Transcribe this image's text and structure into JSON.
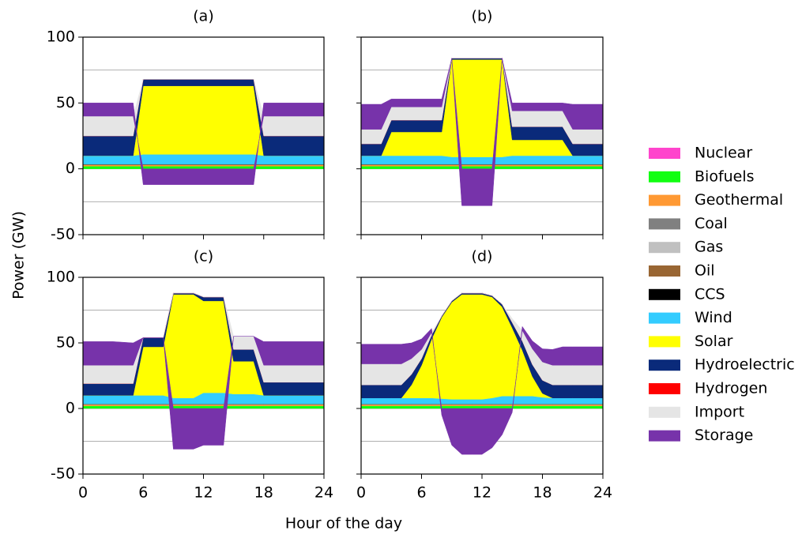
{
  "ylabel": "Power (GW)",
  "xlabel": "Hour of the day",
  "legend": [
    {
      "name": "Nuclear",
      "color": "#ff44cc"
    },
    {
      "name": "Biofuels",
      "color": "#11ff11"
    },
    {
      "name": "Geothermal",
      "color": "#ff9933"
    },
    {
      "name": "Coal",
      "color": "#808080"
    },
    {
      "name": "Gas",
      "color": "#c0c0c0"
    },
    {
      "name": "Oil",
      "color": "#996633"
    },
    {
      "name": "CCS",
      "color": "#000000"
    },
    {
      "name": "Wind",
      "color": "#33ccff"
    },
    {
      "name": "Solar",
      "color": "#ffff00"
    },
    {
      "name": "Hydroelectric",
      "color": "#0a2a7a"
    },
    {
      "name": "Hydrogen",
      "color": "#ff0000"
    },
    {
      "name": "Import",
      "color": "#e5e5e5"
    },
    {
      "name": "Storage",
      "color": "#7733aa"
    }
  ],
  "chart_data": [
    {
      "type": "area",
      "title": "(a)",
      "xlim": [
        0,
        24
      ],
      "xticks": [
        0,
        6,
        12,
        18,
        24
      ],
      "ylim": [
        -50,
        100
      ],
      "yticks": [
        -50,
        0,
        50,
        100
      ],
      "ygrid": [
        -25,
        0,
        25,
        75
      ],
      "show_xticklabels": false,
      "show_yticklabels": true,
      "x": [
        0,
        5,
        6,
        17,
        18,
        24
      ],
      "series": [
        {
          "values": [
            0,
            0,
            0,
            0,
            0,
            0
          ]
        },
        {
          "values": [
            2,
            2,
            2,
            2,
            2,
            2
          ]
        },
        {
          "values": [
            1,
            1,
            1,
            1,
            1,
            1
          ]
        },
        {
          "values": [
            0,
            0,
            0,
            0,
            0,
            0
          ]
        },
        {
          "values": [
            0,
            0,
            0,
            0,
            0,
            0
          ]
        },
        {
          "values": [
            0.5,
            0.5,
            0.5,
            0.5,
            0.5,
            0.5
          ]
        },
        {
          "values": [
            0,
            0,
            0,
            0,
            0,
            0
          ]
        },
        {
          "values": [
            6.5,
            6.5,
            7.5,
            7.5,
            6.5,
            6.5
          ]
        },
        {
          "values": [
            0,
            0,
            52,
            52,
            0,
            0
          ]
        },
        {
          "values": [
            15,
            15,
            5,
            5,
            15,
            15
          ]
        },
        {
          "values": [
            0,
            0,
            0,
            0,
            0,
            0
          ]
        },
        {
          "values": [
            15,
            15,
            0,
            0,
            15,
            15
          ]
        },
        {
          "values": [
            10,
            10,
            -12,
            -12,
            10,
            10
          ]
        }
      ]
    },
    {
      "type": "area",
      "title": "(b)",
      "xlim": [
        0,
        24
      ],
      "xticks": [
        0,
        6,
        12,
        18,
        24
      ],
      "ylim": [
        -50,
        100
      ],
      "yticks": [
        -50,
        0,
        50,
        100
      ],
      "ygrid": [
        -25,
        0,
        25,
        75
      ],
      "show_xticklabels": false,
      "show_yticklabels": false,
      "x": [
        0,
        2,
        3,
        8,
        9,
        10,
        13,
        14,
        15,
        20,
        21,
        24
      ],
      "series": [
        {
          "values": [
            0,
            0,
            0,
            0,
            0,
            0,
            0,
            0,
            0,
            0,
            0,
            0
          ]
        },
        {
          "values": [
            2,
            2,
            2,
            2,
            2,
            2,
            2,
            2,
            2,
            2,
            2,
            2
          ]
        },
        {
          "values": [
            1,
            1,
            1,
            1,
            1,
            1,
            1,
            1,
            1,
            1,
            1,
            1
          ]
        },
        {
          "values": [
            0,
            0,
            0,
            0,
            0,
            0,
            0,
            0,
            0,
            0,
            0,
            0
          ]
        },
        {
          "values": [
            0,
            0,
            0,
            0,
            0,
            0,
            0,
            0,
            0,
            0,
            0,
            0
          ]
        },
        {
          "values": [
            0.5,
            0.5,
            0.5,
            0.5,
            0.5,
            0.5,
            0.5,
            0.5,
            0.5,
            0.5,
            0.5,
            0.5
          ]
        },
        {
          "values": [
            0,
            0,
            0,
            0,
            0,
            0,
            0,
            0,
            0,
            0,
            0,
            0
          ]
        },
        {
          "values": [
            6.5,
            6.5,
            6.5,
            6.5,
            5.5,
            5.5,
            5.5,
            5.5,
            6.5,
            6.5,
            6.5,
            6.5
          ]
        },
        {
          "values": [
            0,
            0,
            18,
            18,
            74,
            74,
            74,
            74,
            12,
            12,
            0,
            0
          ]
        },
        {
          "values": [
            9,
            9,
            9,
            9,
            1,
            1,
            1,
            1,
            10,
            10,
            9,
            9
          ]
        },
        {
          "values": [
            0,
            0,
            0,
            0,
            0,
            0,
            0,
            0,
            0,
            0,
            0,
            0
          ]
        },
        {
          "values": [
            11,
            11,
            10,
            10,
            0,
            0,
            0,
            0,
            12,
            12,
            11,
            11
          ]
        },
        {
          "values": [
            19,
            19,
            6,
            6,
            0,
            -28,
            -28,
            0,
            6,
            6,
            19,
            19
          ]
        }
      ]
    },
    {
      "type": "area",
      "title": "(c)",
      "xlim": [
        0,
        24
      ],
      "xticks": [
        0,
        6,
        12,
        18,
        24
      ],
      "ylim": [
        -50,
        100
      ],
      "yticks": [
        -50,
        0,
        50,
        100
      ],
      "ygrid": [
        -25,
        0,
        25,
        75
      ],
      "show_xticklabels": true,
      "show_yticklabels": true,
      "x": [
        0,
        3,
        5,
        6,
        8,
        9,
        11,
        12,
        14,
        15,
        17,
        18,
        24
      ],
      "series": [
        {
          "values": [
            0,
            0,
            0,
            0,
            0,
            0,
            0,
            0,
            0,
            0,
            0,
            0,
            0
          ]
        },
        {
          "values": [
            2,
            2,
            2,
            2,
            2,
            2,
            2,
            2,
            2,
            2,
            2,
            2,
            2
          ]
        },
        {
          "values": [
            1,
            1,
            1,
            1,
            1,
            1,
            1,
            1,
            1,
            1,
            1,
            1,
            1
          ]
        },
        {
          "values": [
            0,
            0,
            0,
            0,
            0,
            0,
            0,
            0,
            0,
            0,
            0,
            0,
            0
          ]
        },
        {
          "values": [
            0,
            0,
            0,
            0,
            0,
            0,
            0,
            0,
            0,
            0,
            0,
            0,
            0
          ]
        },
        {
          "values": [
            0.5,
            0.5,
            0.5,
            0.5,
            0.5,
            0.5,
            0.5,
            0.5,
            0.5,
            0.5,
            0.5,
            0.5,
            0.5
          ]
        },
        {
          "values": [
            0,
            0,
            0,
            0,
            0,
            0,
            0,
            0,
            0,
            0,
            0,
            0,
            0
          ]
        },
        {
          "values": [
            6.5,
            6.5,
            6.5,
            6.5,
            6.5,
            4.5,
            4.5,
            8.5,
            8.5,
            7.5,
            7.5,
            6.5,
            6.5
          ]
        },
        {
          "values": [
            0,
            0,
            0,
            37,
            37,
            79,
            79,
            70,
            70,
            25,
            25,
            0,
            0
          ]
        },
        {
          "values": [
            9,
            9,
            9,
            7,
            7,
            1,
            1,
            3,
            3,
            9,
            9,
            10,
            10
          ]
        },
        {
          "values": [
            0,
            0,
            0,
            0,
            0,
            0,
            0,
            0,
            0,
            0,
            0,
            0,
            0
          ]
        },
        {
          "values": [
            14,
            14,
            14,
            0,
            0,
            0,
            0,
            0,
            0,
            10,
            10,
            13,
            13
          ]
        },
        {
          "values": [
            18,
            18,
            17,
            0,
            0,
            -31,
            -31,
            -28,
            -28,
            0,
            0,
            18,
            18
          ]
        }
      ]
    },
    {
      "type": "area",
      "title": "(d)",
      "xlim": [
        0,
        24
      ],
      "xticks": [
        0,
        6,
        12,
        18,
        24
      ],
      "ylim": [
        -50,
        100
      ],
      "yticks": [
        -50,
        0,
        50,
        100
      ],
      "ygrid": [
        -25,
        0,
        25,
        75
      ],
      "show_xticklabels": true,
      "show_yticklabels": false,
      "x": [
        0,
        1,
        2,
        3,
        4,
        5,
        6,
        7,
        8,
        9,
        10,
        11,
        12,
        13,
        14,
        15,
        16,
        17,
        18,
        19,
        20,
        21,
        22,
        23,
        24
      ],
      "series": [
        {
          "values": [
            0,
            0,
            0,
            0,
            0,
            0,
            0,
            0,
            0,
            0,
            0,
            0,
            0,
            0,
            0,
            0,
            0,
            0,
            0,
            0,
            0,
            0,
            0,
            0,
            0
          ]
        },
        {
          "values": [
            2,
            2,
            2,
            2,
            2,
            2,
            2,
            2,
            2,
            2,
            2,
            2,
            2,
            2,
            2,
            2,
            2,
            2,
            2,
            2,
            2,
            2,
            2,
            2,
            2
          ]
        },
        {
          "values": [
            1,
            1,
            1,
            1,
            1,
            1,
            1,
            1,
            1,
            1,
            1,
            1,
            1,
            1,
            1,
            1,
            1,
            1,
            1,
            1,
            1,
            1,
            1,
            1,
            1
          ]
        },
        {
          "values": [
            0,
            0,
            0,
            0,
            0,
            0,
            0,
            0,
            0,
            0,
            0,
            0,
            0,
            0,
            0,
            0,
            0,
            0,
            0,
            0,
            0,
            0,
            0,
            0,
            0
          ]
        },
        {
          "values": [
            0,
            0,
            0,
            0,
            0,
            0,
            0,
            0,
            0,
            0,
            0,
            0,
            0,
            0,
            0,
            0,
            0,
            0,
            0,
            0,
            0,
            0,
            0,
            0,
            0
          ]
        },
        {
          "values": [
            0.5,
            0.5,
            0.5,
            0.5,
            0.5,
            0.5,
            0.5,
            0.5,
            0.5,
            0.5,
            0.5,
            0.5,
            0.5,
            0.5,
            0.5,
            0.5,
            0.5,
            0.5,
            0.5,
            0.5,
            0.5,
            0.5,
            0.5,
            0.5,
            0.5
          ]
        },
        {
          "values": [
            0,
            0,
            0,
            0,
            0,
            0,
            0,
            0,
            0,
            0,
            0,
            0,
            0,
            0,
            0,
            0,
            0,
            0,
            0,
            0,
            0,
            0,
            0,
            0,
            0
          ]
        },
        {
          "values": [
            4.5,
            4.5,
            4.5,
            4.5,
            4.5,
            4.5,
            4.5,
            4.5,
            4,
            3.5,
            3.5,
            3.5,
            3.5,
            4.5,
            6,
            6,
            6,
            6,
            5,
            4.5,
            4.5,
            4.5,
            4.5,
            4.5,
            4.5
          ]
        },
        {
          "values": [
            0,
            0,
            0,
            0,
            0,
            10,
            25,
            45,
            62,
            74,
            80,
            80,
            80,
            77,
            68,
            52,
            35,
            15,
            3,
            0,
            0,
            0,
            0,
            0,
            0
          ]
        },
        {
          "values": [
            10,
            10,
            10,
            10,
            10,
            8,
            5,
            3,
            1,
            1,
            1,
            1,
            1,
            1,
            2,
            4,
            7,
            9,
            10,
            10,
            10,
            10,
            10,
            10,
            10
          ]
        },
        {
          "values": [
            0,
            0,
            0,
            0,
            0,
            0,
            0,
            0,
            0,
            0,
            0,
            0,
            0,
            0,
            0,
            0,
            0,
            0,
            0,
            0,
            0,
            0,
            0,
            0,
            0
          ]
        },
        {
          "values": [
            16,
            16,
            16,
            16,
            16,
            12,
            7,
            2,
            0,
            0,
            0,
            0,
            0,
            0,
            0,
            3,
            8,
            12,
            14,
            15,
            15,
            15,
            15,
            15,
            15
          ]
        },
        {
          "values": [
            15,
            15,
            15,
            15,
            15,
            12,
            8,
            3,
            -5,
            -28,
            -35,
            -35,
            -35,
            -30,
            -20,
            -3,
            3,
            6,
            10,
            12,
            14,
            14,
            14,
            14,
            14
          ]
        }
      ]
    }
  ]
}
